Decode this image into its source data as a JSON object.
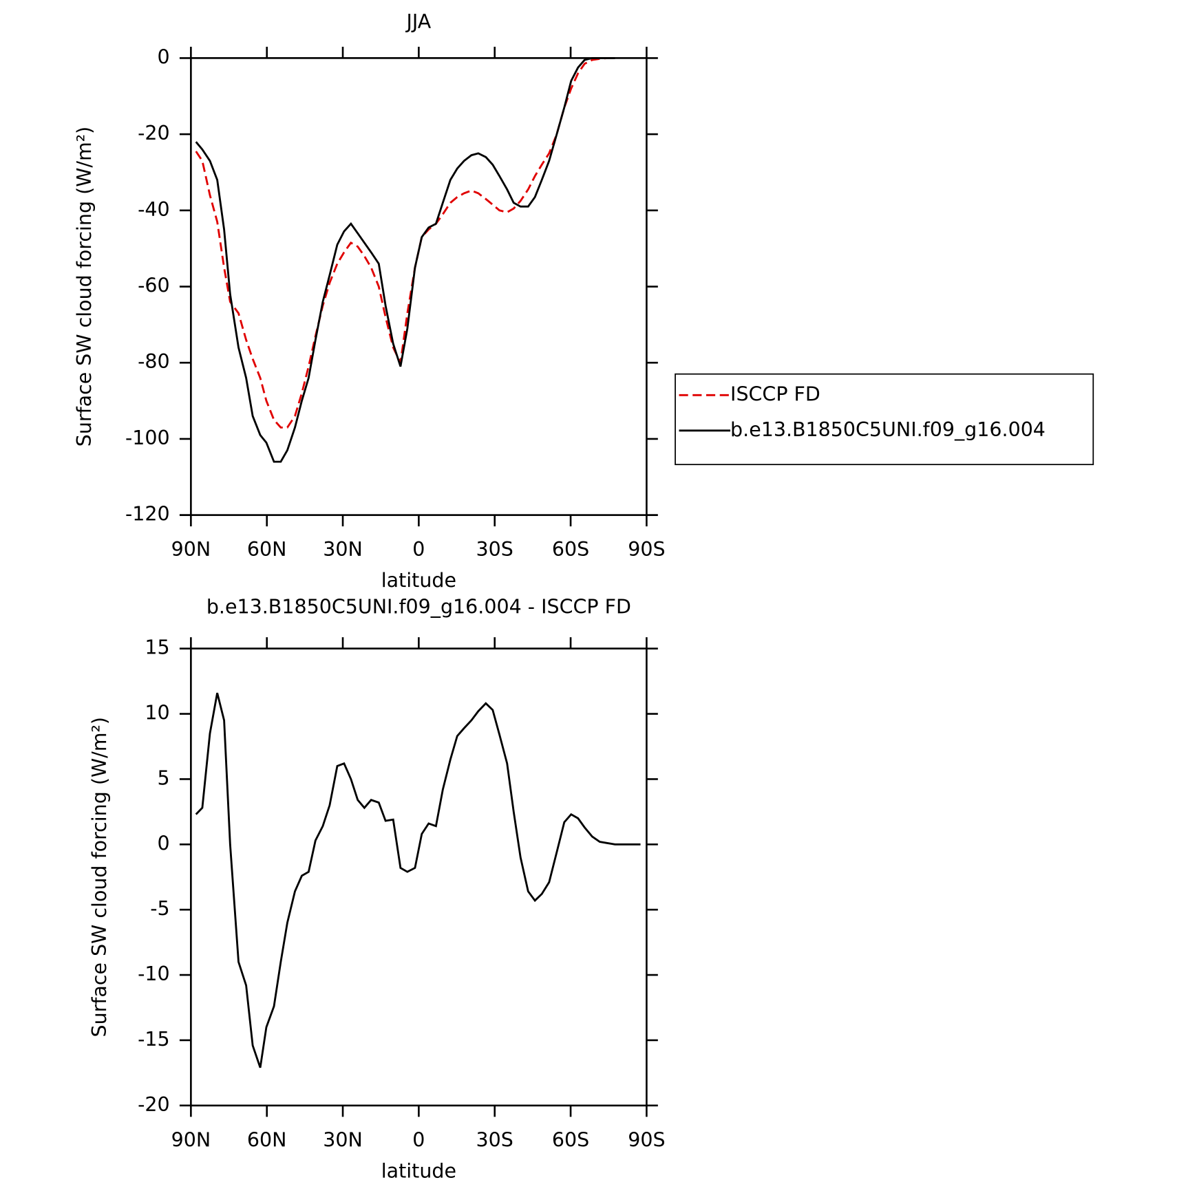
{
  "chart_data": [
    {
      "type": "line",
      "title": "JJA",
      "xlabel": "latitude",
      "ylabel": "Surface SW cloud forcing (W/m²)",
      "x": [
        88,
        85.5,
        82.5,
        79.6,
        76.9,
        74.5,
        71.2,
        68.2,
        65.6,
        62.6,
        60.2,
        57.2,
        54.5,
        51.9,
        48.9,
        46.2,
        43.5,
        40.8,
        37.9,
        35.2,
        32.2,
        29.5,
        26.8,
        24.1,
        21.5,
        18.8,
        15.8,
        13.1,
        10.1,
        7.2,
        4.5,
        1.5,
        -1.2,
        -3.9,
        -6.8,
        -9.5,
        -12.5,
        -15.2,
        -17.9,
        -20.8,
        -23.5,
        -26.5,
        -29.2,
        -31.9,
        -34.9,
        -37.5,
        -40.2,
        -43.2,
        -45.9,
        -48.6,
        -51.5,
        -54.5,
        -57.5,
        -60.2,
        -62.9,
        -65.5,
        -68.5,
        -71.5,
        -74.5,
        -77.5
      ],
      "series": [
        {
          "name": "ISCCP FD",
          "color": "#e00000",
          "linestyle": "dashed",
          "values": [
            -24.5,
            -27,
            -36,
            -43,
            -55,
            -64,
            -67,
            -74,
            -79,
            -84,
            -90,
            -95,
            -97,
            -97,
            -94,
            -88,
            -81,
            -73,
            -65,
            -59,
            -54,
            -51,
            -48.5,
            -49.5,
            -52,
            -55,
            -60,
            -68,
            -76,
            -80,
            -67,
            -55,
            -47,
            -45,
            -43.5,
            -41,
            -38,
            -36.5,
            -35.5,
            -34.8,
            -35.5,
            -37,
            -38.5,
            -40,
            -40.5,
            -39.5,
            -37.5,
            -34.5,
            -31,
            -28,
            -25,
            -20,
            -13,
            -8,
            -4,
            -1.5,
            -0.5,
            -0.2,
            0,
            0
          ]
        },
        {
          "name": "b.e13.B1850C5UNI.f09_g16.004",
          "color": "#000000",
          "linestyle": "solid",
          "values": [
            -22,
            -24,
            -27,
            -32,
            -45,
            -62,
            -76,
            -84,
            -94,
            -99,
            -101,
            -106,
            -106,
            -103,
            -97,
            -90,
            -84,
            -74,
            -64,
            -57,
            -49,
            -45.5,
            -43.5,
            -46,
            -48.5,
            -51,
            -54,
            -65,
            -75,
            -81,
            -71,
            -55,
            -47,
            -44.5,
            -43.5,
            -38,
            -32,
            -29,
            -27,
            -25.5,
            -25,
            -26,
            -28,
            -31,
            -34.5,
            -38,
            -39,
            -39,
            -36.5,
            -32,
            -27,
            -20,
            -13,
            -6,
            -2.5,
            -0.5,
            0,
            0,
            0,
            0
          ]
        }
      ],
      "xlim": [
        90,
        -90
      ],
      "xticks": [
        {
          "value": 90,
          "label": "90N"
        },
        {
          "value": 60,
          "label": "60N"
        },
        {
          "value": 30,
          "label": "30N"
        },
        0,
        {
          "value": -30,
          "label": "30S"
        },
        {
          "value": -60,
          "label": "60S"
        },
        {
          "value": -90,
          "label": "90S"
        }
      ],
      "ylim": [
        -120,
        0
      ],
      "yticks": [
        0,
        -20,
        -40,
        -60,
        -80,
        -100,
        -120
      ],
      "legend": "right"
    },
    {
      "type": "line",
      "title": "b.e13.B1850C5UNI.f09_g16.004 - ISCCP FD",
      "xlabel": "latitude",
      "ylabel": "Surface SW cloud forcing (W/m²)",
      "x": [
        88,
        85.5,
        82.5,
        79.6,
        76.9,
        74.5,
        71.2,
        68.2,
        65.6,
        62.6,
        60.2,
        57.2,
        54.5,
        51.9,
        48.9,
        46.2,
        43.5,
        40.8,
        37.9,
        35.2,
        32.2,
        29.5,
        26.8,
        24.1,
        21.5,
        18.8,
        15.8,
        13.1,
        10.1,
        7.2,
        4.5,
        1.5,
        -1.2,
        -3.9,
        -6.8,
        -9.5,
        -12.5,
        -15.2,
        -17.9,
        -20.8,
        -23.5,
        -26.5,
        -29.2,
        -31.9,
        -34.9,
        -37.5,
        -40.2,
        -43.2,
        -45.9,
        -48.6,
        -51.5,
        -54.5,
        -57.5,
        -60.2,
        -62.9,
        -65.5,
        -68.5,
        -71.5,
        -74.5,
        -77.5,
        -80.4,
        -83.4,
        -87.6
      ],
      "series": [
        {
          "color": "#000000",
          "linestyle": "solid",
          "values": [
            2.3,
            2.8,
            8.5,
            11.6,
            9.5,
            0,
            -9,
            -10.8,
            -15.4,
            -17.1,
            -14,
            -12.4,
            -9,
            -6,
            -3.6,
            -2.4,
            -2.1,
            0.3,
            1.4,
            3,
            6,
            6.2,
            5,
            3.4,
            2.8,
            3.4,
            3.2,
            1.8,
            1.9,
            -1.8,
            -2.1,
            -1.8,
            0.8,
            1.6,
            1.4,
            4.2,
            6.5,
            8.3,
            8.9,
            9.5,
            10.2,
            10.8,
            10.3,
            8.4,
            6.2,
            2.5,
            -1,
            -3.6,
            -4.3,
            -3.8,
            -2.9,
            -0.6,
            1.7,
            2.3,
            2,
            1.3,
            0.6,
            0.2,
            0.1,
            0,
            0,
            0,
            0
          ]
        }
      ],
      "xlim": [
        90,
        -90
      ],
      "xticks": [
        {
          "value": 90,
          "label": "90N"
        },
        {
          "value": 60,
          "label": "60N"
        },
        {
          "value": 30,
          "label": "30N"
        },
        0,
        {
          "value": -30,
          "label": "30S"
        },
        {
          "value": -60,
          "label": "60S"
        },
        {
          "value": -90,
          "label": "90S"
        }
      ],
      "ylim": [
        -20,
        15
      ],
      "yticks": [
        15,
        10,
        5,
        0,
        -5,
        -10,
        -15,
        -20
      ]
    }
  ]
}
